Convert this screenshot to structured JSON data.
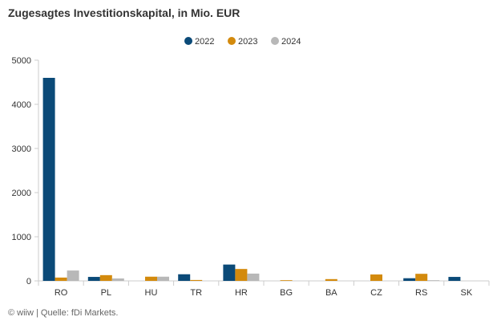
{
  "chart_data": {
    "type": "bar",
    "title": "Zugesagtes Investitionskapital, in Mio. EUR",
    "xlabel": "",
    "ylabel": "",
    "categories": [
      "RO",
      "PL",
      "HU",
      "TR",
      "HR",
      "BG",
      "BA",
      "CZ",
      "RS",
      "SK"
    ],
    "series": [
      {
        "name": "2022",
        "color": "#0b4a78",
        "values": [
          4600,
          90,
          0,
          150,
          370,
          0,
          0,
          0,
          60,
          90
        ]
      },
      {
        "name": "2023",
        "color": "#d38a0d",
        "values": [
          75,
          130,
          95,
          20,
          270,
          15,
          40,
          145,
          160,
          0
        ]
      },
      {
        "name": "2024",
        "color": "#b8b8b8",
        "values": [
          235,
          55,
          95,
          0,
          165,
          0,
          0,
          0,
          15,
          0
        ]
      }
    ],
    "ylim": [
      0,
      5000
    ],
    "yticks": [
      0,
      1000,
      2000,
      3000,
      4000,
      5000
    ],
    "grid": false,
    "legend_position": "top-center"
  },
  "footer": {
    "source": "© wiiw | Quelle: fDi Markets."
  }
}
